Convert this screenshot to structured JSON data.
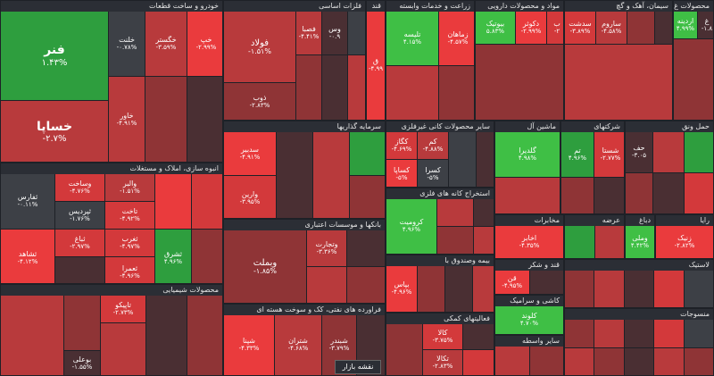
{
  "watermark": "nabzebourse.com",
  "map_button": "نقشه بازار",
  "sectors": [
    {
      "name": "خودرو و ساخت قطعات",
      "tiles": [
        [
          "فنر",
          "۱.۴۳%"
        ],
        [
          "خساپا",
          "-۲.۷%"
        ],
        [
          "خلنت",
          "-۰.۷۸%"
        ],
        [
          "خگستر",
          "-۳.۵۹%"
        ],
        [
          "خپ",
          "-۲.۹۹%"
        ],
        [
          "خاور",
          "-۴.۹۱%"
        ],
        [
          "",
          ""
        ],
        [
          "",
          ""
        ]
      ]
    },
    {
      "name": "فلزات اساسی",
      "tiles": [
        [
          "فولاد",
          "-۱.۵۱%"
        ],
        [
          "ذوب",
          "-۲.۸۳%"
        ],
        [
          "فصبا",
          "-۴.۴۱%"
        ],
        [
          "وس",
          "-۰.۹"
        ],
        [
          "",
          ""
        ],
        [
          "",
          ""
        ]
      ]
    },
    {
      "name": "قند",
      "tiles": [
        [
          "ق",
          "-۴.۹۹"
        ]
      ]
    },
    {
      "name": "زراعت و خدمات وابسته",
      "tiles": [
        [
          "تلیسه",
          "۴.۱۵%"
        ],
        [
          "زماهان",
          "-۴.۵۷%"
        ],
        [
          "",
          ""
        ],
        [
          "",
          ""
        ]
      ]
    },
    {
      "name": "مواد و محصولات دارویی",
      "tiles": [
        [
          "بیوتیک",
          "۵.۸۳%"
        ],
        [
          "دکوثر",
          "-۲.۹۹%"
        ],
        [
          "ب",
          "-۲"
        ]
      ]
    },
    {
      "name": "سیمان، آهک و گچ",
      "tiles": [
        [
          "سدشت",
          "-۳.۸۹%"
        ],
        [
          "ساروم",
          "-۴.۵۸%"
        ],
        [
          "",
          ""
        ]
      ]
    },
    {
      "name": "محصولات غ",
      "tiles": [
        [
          "اردینه",
          "۴.۹۹%"
        ],
        [
          "غ",
          "-۱.۸"
        ]
      ]
    },
    {
      "name": "انبوه سازی، املاک و مستغلات",
      "tiles": [
        [
          "ثفارس",
          "-۰.۱۱%"
        ],
        [
          "وساخت",
          "-۴.۷۶%"
        ],
        [
          "ثشاهد",
          "-۴.۱۲%"
        ],
        [
          "ثپردیس",
          "-۱.۷۶%"
        ],
        [
          "تاخت",
          "-۴.۹۲%"
        ],
        [
          "ثباغ",
          "-۲.۹۷%"
        ],
        [
          "ثغرب",
          "-۴.۹۷%"
        ],
        [
          "ثعمرا",
          "-۴.۹۶%"
        ],
        [
          "والبر",
          "-۱.۵۱%"
        ],
        [
          "ثشرق",
          "۴.۹۶%"
        ]
      ]
    },
    {
      "name": "سرمایه گذاریها",
      "tiles": [
        [
          "سدبیر",
          "-۴.۹۱%"
        ],
        [
          "وارین",
          "-۳.۹۵%"
        ],
        [
          "",
          ""
        ],
        [
          "",
          ""
        ]
      ]
    },
    {
      "name": "سایر محصولات کانی غیرفلزی",
      "tiles": [
        [
          "کگاز",
          "-۴.۶۹%"
        ],
        [
          "کسرا",
          "-۵%"
        ],
        [
          "کساپا",
          "-۵%"
        ],
        [
          "کم",
          "-۴.۸۸%"
        ]
      ]
    },
    {
      "name": "ماشین آل",
      "tiles": [
        [
          "گلدیرا",
          "۴.۹۸%"
        ]
      ]
    },
    {
      "name": "شرکتهای",
      "tiles": [
        [
          "تم",
          "۴.۹۶%"
        ],
        [
          "شستا",
          "-۲.۷۷%"
        ]
      ]
    },
    {
      "name": "حمل ونق",
      "tiles": [
        [
          "حف",
          "-۳.۰۵"
        ]
      ]
    },
    {
      "name": "بانکها و موسسات اعتباری",
      "tiles": [
        [
          "وبملت",
          "-۱.۸۵%"
        ],
        [
          "وتجارت",
          "-۳.۳۶%"
        ]
      ]
    },
    {
      "name": "استخراج کانه های فلزی",
      "tiles": [
        [
          "کرومیت",
          "۴.۹۶%"
        ]
      ]
    },
    {
      "name": "مخابرات",
      "tiles": [
        [
          "اخابر",
          "-۴.۳۵%"
        ]
      ]
    },
    {
      "name": "محصولات شیمیایی",
      "tiles": [
        [
          "تاپیکو",
          "-۲.۷۳%"
        ],
        [
          "بوعلی",
          "-۱.۵۵%"
        ]
      ]
    },
    {
      "name": "فراورده های نفتی، کک و سوخت هسته ای",
      "tiles": [
        [
          "شپنا",
          "-۴.۳۳%"
        ],
        [
          "شتران",
          "-۴.۶۸%"
        ],
        [
          "شبندر",
          "-۳.۷۹%"
        ]
      ]
    },
    {
      "name": "بیمه وصندوق با",
      "tiles": [
        [
          "بپاس",
          "-۴.۹۶%"
        ]
      ]
    },
    {
      "name": "فعالیتهای کمکی",
      "tiles": [
        [
          "کالا",
          "-۳.۷۵%"
        ],
        [
          "تکالا",
          "-۲.۸۳%"
        ],
        [
          "",
          ""
        ]
      ]
    },
    {
      "name": "قند و شکر",
      "tiles": [
        [
          "قن",
          "-۴.۹۵%"
        ]
      ]
    },
    {
      "name": "کاشی و سرامیک",
      "tiles": [
        [
          "کلوند",
          "۴.۷۰%"
        ]
      ]
    },
    {
      "name": "سایر واسطه",
      "tiles": [
        [
          "",
          ""
        ]
      ]
    },
    {
      "name": "منسوجات",
      "tiles": [
        [
          "",
          ""
        ]
      ]
    },
    {
      "name": "لاستیک",
      "tiles": [
        [
          "",
          ""
        ]
      ]
    },
    {
      "name": "عرضه",
      "tiles": [
        [
          "",
          ""
        ]
      ]
    },
    {
      "name": "دباغ",
      "tiles": [
        [
          "",
          ""
        ]
      ]
    },
    {
      "name": "ماش",
      "tiles": [
        [
          "وملی",
          "۴.۴۲%"
        ]
      ]
    },
    {
      "name": "رایا",
      "tiles": [
        [
          "زنیک",
          "-۲.۸۲%"
        ]
      ]
    }
  ]
}
